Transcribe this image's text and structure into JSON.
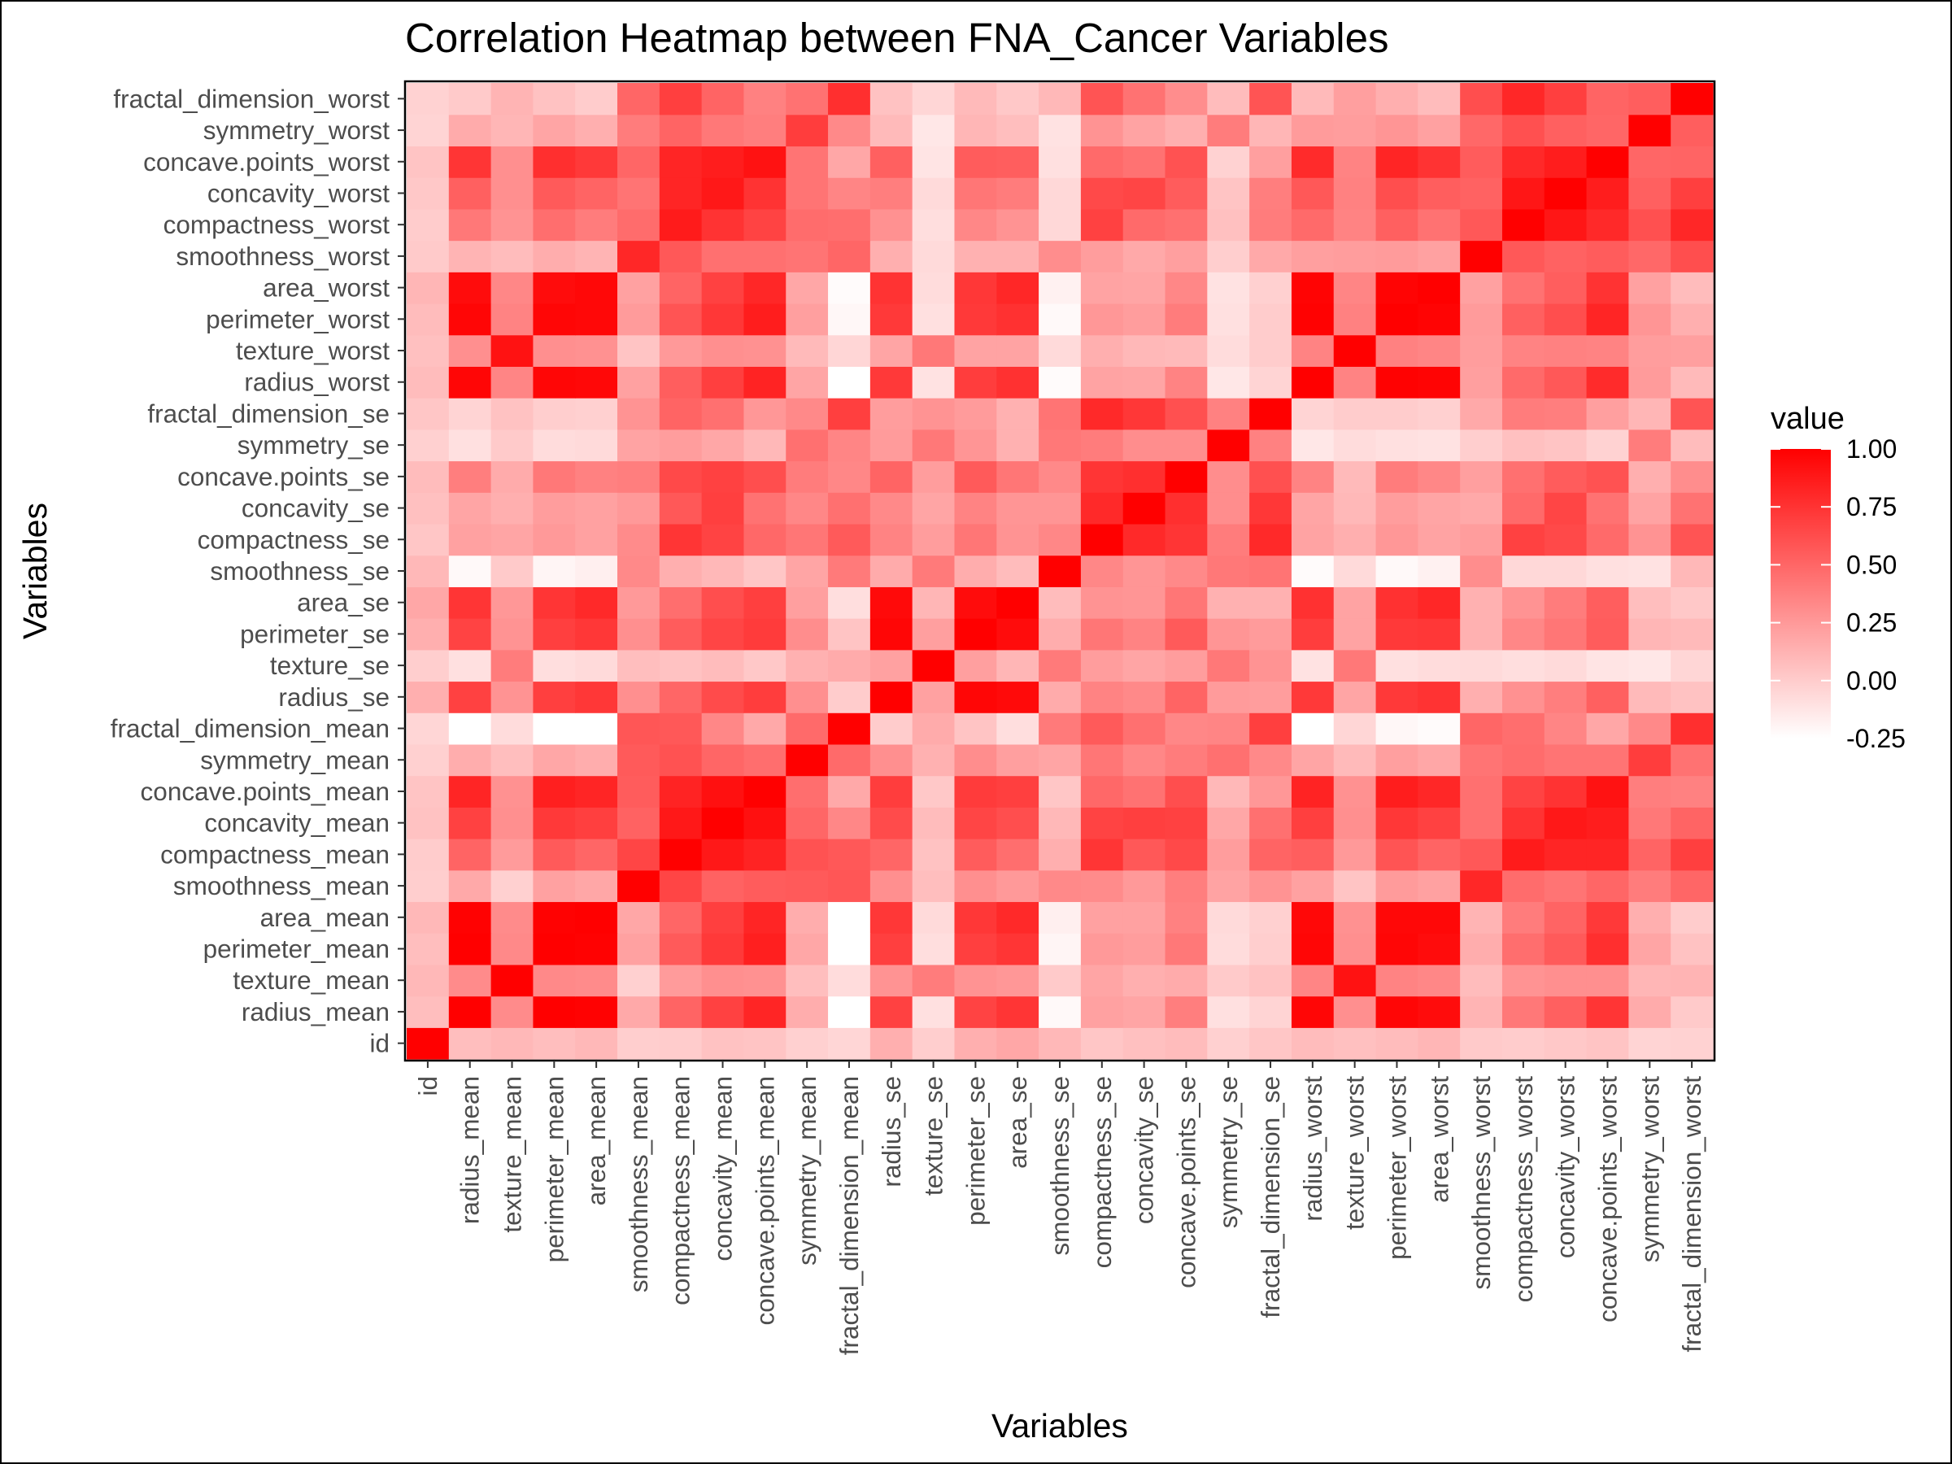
{
  "chart_data": {
    "type": "heatmap",
    "title": "Correlation Heatmap between FNA_Cancer Variables",
    "xlabel": "Variables",
    "ylabel": "Variables",
    "x": [
      "id",
      "radius_mean",
      "texture_mean",
      "perimeter_mean",
      "area_mean",
      "smoothness_mean",
      "compactness_mean",
      "concavity_mean",
      "concave.points_mean",
      "symmetry_mean",
      "fractal_dimension_mean",
      "radius_se",
      "texture_se",
      "perimeter_se",
      "area_se",
      "smoothness_se",
      "compactness_se",
      "concavity_se",
      "concave.points_se",
      "symmetry_se",
      "fractal_dimension_se",
      "radius_worst",
      "texture_worst",
      "perimeter_worst",
      "area_worst",
      "smoothness_worst",
      "compactness_worst",
      "concavity_worst",
      "concave.points_worst",
      "symmetry_worst",
      "fractal_dimension_worst"
    ],
    "y": [
      "id",
      "radius_mean",
      "texture_mean",
      "perimeter_mean",
      "area_mean",
      "smoothness_mean",
      "compactness_mean",
      "concavity_mean",
      "concave.points_mean",
      "symmetry_mean",
      "fractal_dimension_mean",
      "radius_se",
      "texture_se",
      "perimeter_se",
      "area_se",
      "smoothness_se",
      "compactness_se",
      "concavity_se",
      "concave.points_se",
      "symmetry_se",
      "fractal_dimension_se",
      "radius_worst",
      "texture_worst",
      "perimeter_worst",
      "area_worst",
      "smoothness_worst",
      "compactness_worst",
      "concavity_worst",
      "concave.points_worst",
      "symmetry_worst",
      "fractal_dimension_worst"
    ],
    "values": [
      [
        1.0,
        0.07,
        0.1,
        0.07,
        0.1,
        -0.01,
        0.0,
        0.05,
        0.04,
        -0.02,
        -0.05,
        0.14,
        -0.01,
        0.14,
        0.18,
        0.1,
        0.03,
        0.06,
        0.08,
        -0.02,
        0.03,
        0.08,
        0.06,
        0.08,
        0.11,
        0.01,
        0.0,
        0.02,
        0.04,
        -0.04,
        -0.03
      ],
      [
        0.07,
        1.0,
        0.32,
        1.0,
        0.99,
        0.17,
        0.51,
        0.68,
        0.82,
        0.15,
        -0.31,
        0.68,
        -0.1,
        0.67,
        0.74,
        -0.22,
        0.21,
        0.19,
        0.38,
        -0.1,
        -0.04,
        0.97,
        0.3,
        0.97,
        0.94,
        0.12,
        0.41,
        0.53,
        0.74,
        0.16,
        0.01
      ],
      [
        0.1,
        0.32,
        1.0,
        0.33,
        0.32,
        -0.02,
        0.24,
        0.3,
        0.29,
        0.07,
        -0.08,
        0.28,
        0.39,
        0.28,
        0.26,
        0.01,
        0.19,
        0.14,
        0.16,
        0.01,
        0.05,
        0.35,
        0.91,
        0.36,
        0.34,
        0.08,
        0.28,
        0.3,
        0.3,
        0.11,
        0.12
      ],
      [
        0.07,
        1.0,
        0.33,
        1.0,
        0.99,
        0.21,
        0.56,
        0.72,
        0.85,
        0.18,
        -0.26,
        0.69,
        -0.09,
        0.69,
        0.74,
        -0.2,
        0.25,
        0.23,
        0.41,
        -0.08,
        -0.01,
        0.97,
        0.3,
        0.97,
        0.94,
        0.15,
        0.46,
        0.56,
        0.77,
        0.19,
        0.05
      ],
      [
        0.1,
        0.99,
        0.32,
        0.99,
        1.0,
        0.18,
        0.5,
        0.69,
        0.82,
        0.15,
        -0.28,
        0.73,
        -0.07,
        0.73,
        0.8,
        -0.17,
        0.21,
        0.21,
        0.37,
        -0.07,
        -0.02,
        0.96,
        0.29,
        0.96,
        0.96,
        0.12,
        0.39,
        0.51,
        0.72,
        0.14,
        0.0
      ],
      [
        -0.01,
        0.17,
        -0.02,
        0.21,
        0.18,
        1.0,
        0.66,
        0.52,
        0.55,
        0.56,
        0.58,
        0.3,
        0.07,
        0.3,
        0.25,
        0.33,
        0.32,
        0.25,
        0.38,
        0.2,
        0.28,
        0.21,
        0.04,
        0.24,
        0.21,
        0.81,
        0.47,
        0.43,
        0.5,
        0.39,
        0.5
      ],
      [
        0.0,
        0.51,
        0.24,
        0.56,
        0.5,
        0.66,
        1.0,
        0.88,
        0.83,
        0.6,
        0.57,
        0.5,
        0.05,
        0.55,
        0.46,
        0.14,
        0.74,
        0.57,
        0.64,
        0.23,
        0.51,
        0.54,
        0.25,
        0.59,
        0.51,
        0.57,
        0.87,
        0.82,
        0.82,
        0.51,
        0.69
      ],
      [
        0.05,
        0.68,
        0.3,
        0.72,
        0.69,
        0.52,
        0.88,
        1.0,
        0.92,
        0.5,
        0.34,
        0.63,
        0.08,
        0.66,
        0.62,
        0.1,
        0.67,
        0.69,
        0.68,
        0.18,
        0.45,
        0.69,
        0.3,
        0.73,
        0.68,
        0.45,
        0.75,
        0.88,
        0.86,
        0.41,
        0.51
      ],
      [
        0.04,
        0.82,
        0.29,
        0.85,
        0.82,
        0.55,
        0.83,
        0.92,
        1.0,
        0.46,
        0.17,
        0.7,
        0.02,
        0.71,
        0.69,
        0.03,
        0.49,
        0.44,
        0.62,
        0.1,
        0.26,
        0.83,
        0.29,
        0.86,
        0.81,
        0.45,
        0.67,
        0.75,
        0.91,
        0.38,
        0.37
      ],
      [
        -0.02,
        0.15,
        0.07,
        0.18,
        0.15,
        0.56,
        0.6,
        0.5,
        0.46,
        1.0,
        0.48,
        0.3,
        0.13,
        0.31,
        0.22,
        0.19,
        0.42,
        0.34,
        0.39,
        0.45,
        0.33,
        0.19,
        0.09,
        0.22,
        0.18,
        0.43,
        0.47,
        0.43,
        0.43,
        0.7,
        0.44
      ],
      [
        -0.05,
        -0.31,
        -0.08,
        -0.26,
        -0.28,
        0.58,
        0.57,
        0.34,
        0.17,
        0.48,
        1.0,
        0.0,
        0.16,
        0.04,
        -0.09,
        0.4,
        0.56,
        0.45,
        0.34,
        0.35,
        0.69,
        -0.25,
        -0.05,
        -0.21,
        -0.23,
        0.5,
        0.46,
        0.35,
        0.18,
        0.33,
        0.77
      ],
      [
        0.14,
        0.68,
        0.28,
        0.69,
        0.73,
        0.3,
        0.5,
        0.63,
        0.7,
        0.3,
        0.0,
        1.0,
        0.21,
        0.97,
        0.95,
        0.16,
        0.36,
        0.33,
        0.51,
        0.24,
        0.23,
        0.72,
        0.19,
        0.72,
        0.75,
        0.14,
        0.29,
        0.38,
        0.53,
        0.09,
        0.05
      ],
      [
        -0.01,
        -0.1,
        0.39,
        -0.09,
        -0.07,
        0.07,
        0.05,
        0.08,
        0.02,
        0.13,
        0.16,
        0.21,
        1.0,
        0.22,
        0.11,
        0.4,
        0.23,
        0.19,
        0.23,
        0.41,
        0.28,
        -0.11,
        0.41,
        -0.1,
        -0.08,
        -0.07,
        -0.09,
        -0.07,
        -0.12,
        -0.13,
        -0.05
      ],
      [
        0.14,
        0.67,
        0.28,
        0.69,
        0.73,
        0.3,
        0.55,
        0.66,
        0.71,
        0.31,
        0.04,
        0.97,
        0.22,
        1.0,
        0.94,
        0.15,
        0.42,
        0.36,
        0.56,
        0.27,
        0.24,
        0.7,
        0.2,
        0.72,
        0.73,
        0.13,
        0.34,
        0.42,
        0.55,
        0.11,
        0.09
      ],
      [
        0.18,
        0.74,
        0.26,
        0.74,
        0.8,
        0.25,
        0.46,
        0.62,
        0.69,
        0.22,
        -0.09,
        0.95,
        0.11,
        0.94,
        1.0,
        0.08,
        0.28,
        0.27,
        0.42,
        0.13,
        0.13,
        0.76,
        0.2,
        0.76,
        0.81,
        0.13,
        0.28,
        0.39,
        0.54,
        0.07,
        0.02
      ],
      [
        0.1,
        -0.22,
        0.01,
        -0.2,
        -0.17,
        0.33,
        0.14,
        0.1,
        0.03,
        0.19,
        0.4,
        0.16,
        0.4,
        0.15,
        0.08,
        1.0,
        0.34,
        0.27,
        0.33,
        0.41,
        0.43,
        -0.23,
        -0.07,
        -0.22,
        -0.18,
        0.31,
        -0.06,
        -0.06,
        -0.1,
        -0.11,
        0.1
      ],
      [
        0.03,
        0.21,
        0.19,
        0.25,
        0.21,
        0.32,
        0.74,
        0.67,
        0.49,
        0.42,
        0.56,
        0.36,
        0.23,
        0.42,
        0.28,
        0.34,
        1.0,
        0.8,
        0.74,
        0.39,
        0.8,
        0.2,
        0.14,
        0.26,
        0.2,
        0.23,
        0.68,
        0.64,
        0.48,
        0.28,
        0.59
      ],
      [
        0.06,
        0.19,
        0.14,
        0.23,
        0.21,
        0.25,
        0.57,
        0.69,
        0.44,
        0.34,
        0.45,
        0.33,
        0.19,
        0.36,
        0.27,
        0.27,
        0.8,
        1.0,
        0.77,
        0.31,
        0.73,
        0.19,
        0.1,
        0.23,
        0.19,
        0.17,
        0.48,
        0.66,
        0.44,
        0.2,
        0.44
      ],
      [
        0.08,
        0.38,
        0.16,
        0.41,
        0.37,
        0.38,
        0.64,
        0.68,
        0.62,
        0.39,
        0.34,
        0.51,
        0.23,
        0.56,
        0.42,
        0.33,
        0.74,
        0.77,
        1.0,
        0.31,
        0.61,
        0.36,
        0.09,
        0.39,
        0.34,
        0.22,
        0.45,
        0.55,
        0.6,
        0.14,
        0.31
      ],
      [
        -0.02,
        -0.1,
        0.01,
        -0.08,
        -0.07,
        0.2,
        0.23,
        0.18,
        0.1,
        0.45,
        0.35,
        0.24,
        0.41,
        0.27,
        0.13,
        0.41,
        0.39,
        0.31,
        0.31,
        1.0,
        0.37,
        -0.13,
        -0.08,
        -0.1,
        -0.11,
        -0.01,
        0.06,
        0.04,
        -0.03,
        0.39,
        0.08
      ],
      [
        0.03,
        -0.04,
        0.05,
        -0.01,
        -0.02,
        0.28,
        0.51,
        0.45,
        0.26,
        0.33,
        0.69,
        0.23,
        0.28,
        0.24,
        0.13,
        0.43,
        0.8,
        0.73,
        0.61,
        0.37,
        1.0,
        -0.04,
        0.0,
        -0.0,
        -0.02,
        0.17,
        0.39,
        0.38,
        0.22,
        0.11,
        0.59
      ],
      [
        0.08,
        0.97,
        0.35,
        0.97,
        0.96,
        0.21,
        0.54,
        0.69,
        0.83,
        0.19,
        -0.25,
        0.72,
        -0.11,
        0.7,
        0.76,
        -0.23,
        0.2,
        0.19,
        0.36,
        -0.13,
        -0.04,
        1.0,
        0.36,
        0.99,
        0.98,
        0.22,
        0.48,
        0.57,
        0.79,
        0.24,
        0.09
      ],
      [
        0.06,
        0.3,
        0.91,
        0.3,
        0.29,
        0.04,
        0.25,
        0.3,
        0.29,
        0.09,
        -0.05,
        0.19,
        0.41,
        0.2,
        0.2,
        -0.07,
        0.14,
        0.1,
        0.09,
        -0.08,
        0.0,
        0.36,
        1.0,
        0.37,
        0.35,
        0.23,
        0.36,
        0.37,
        0.36,
        0.23,
        0.22
      ],
      [
        0.08,
        0.97,
        0.36,
        0.97,
        0.96,
        0.24,
        0.59,
        0.73,
        0.86,
        0.22,
        -0.21,
        0.72,
        -0.1,
        0.72,
        0.76,
        -0.22,
        0.26,
        0.23,
        0.39,
        -0.1,
        -0.0,
        0.99,
        0.37,
        1.0,
        0.98,
        0.24,
        0.53,
        0.62,
        0.82,
        0.27,
        0.14
      ],
      [
        0.11,
        0.94,
        0.34,
        0.94,
        0.96,
        0.21,
        0.51,
        0.68,
        0.81,
        0.18,
        -0.23,
        0.75,
        -0.08,
        0.73,
        0.81,
        -0.18,
        0.2,
        0.19,
        0.34,
        -0.11,
        -0.02,
        0.98,
        0.35,
        0.98,
        1.0,
        0.21,
        0.44,
        0.54,
        0.75,
        0.21,
        0.08
      ],
      [
        0.01,
        0.12,
        0.08,
        0.15,
        0.12,
        0.81,
        0.57,
        0.45,
        0.45,
        0.43,
        0.5,
        0.14,
        -0.07,
        0.13,
        0.13,
        0.31,
        0.23,
        0.17,
        0.22,
        -0.01,
        0.17,
        0.22,
        0.23,
        0.24,
        0.21,
        1.0,
        0.57,
        0.52,
        0.55,
        0.49,
        0.62
      ],
      [
        0.0,
        0.41,
        0.28,
        0.46,
        0.39,
        0.47,
        0.87,
        0.75,
        0.67,
        0.47,
        0.46,
        0.29,
        -0.09,
        0.34,
        0.28,
        -0.06,
        0.68,
        0.48,
        0.45,
        0.06,
        0.39,
        0.48,
        0.36,
        0.53,
        0.44,
        0.57,
        1.0,
        0.89,
        0.8,
        0.61,
        0.81
      ],
      [
        0.02,
        0.53,
        0.3,
        0.56,
        0.51,
        0.43,
        0.82,
        0.88,
        0.75,
        0.43,
        0.35,
        0.38,
        -0.07,
        0.42,
        0.39,
        -0.06,
        0.64,
        0.66,
        0.55,
        0.04,
        0.38,
        0.57,
        0.37,
        0.62,
        0.54,
        0.52,
        0.89,
        1.0,
        0.86,
        0.53,
        0.69
      ],
      [
        0.04,
        0.74,
        0.3,
        0.77,
        0.72,
        0.5,
        0.82,
        0.86,
        0.91,
        0.43,
        0.18,
        0.53,
        -0.12,
        0.55,
        0.54,
        -0.1,
        0.48,
        0.44,
        0.6,
        -0.03,
        0.22,
        0.79,
        0.36,
        0.82,
        0.75,
        0.55,
        0.8,
        0.86,
        1.0,
        0.5,
        0.51
      ],
      [
        -0.04,
        0.16,
        0.11,
        0.19,
        0.14,
        0.39,
        0.51,
        0.41,
        0.38,
        0.7,
        0.33,
        0.09,
        -0.13,
        0.11,
        0.07,
        -0.11,
        0.28,
        0.2,
        0.14,
        0.39,
        0.11,
        0.24,
        0.23,
        0.27,
        0.21,
        0.49,
        0.61,
        0.53,
        0.5,
        1.0,
        0.54
      ],
      [
        -0.03,
        0.01,
        0.12,
        0.05,
        0.0,
        0.5,
        0.69,
        0.51,
        0.37,
        0.44,
        0.77,
        0.05,
        -0.05,
        0.09,
        0.02,
        0.1,
        0.59,
        0.44,
        0.31,
        0.08,
        0.59,
        0.09,
        0.22,
        0.14,
        0.08,
        0.62,
        0.81,
        0.69,
        0.51,
        0.54,
        1.0
      ]
    ],
    "colorscale": {
      "low": "#ffffff",
      "high": "#ff0000",
      "min": -0.25,
      "max": 1.0
    },
    "legend": {
      "title": "value",
      "placement": "right",
      "ticks": [
        1.0,
        0.75,
        0.5,
        0.25,
        0.0,
        -0.25
      ],
      "tick_labels": [
        "1.00",
        "0.75",
        "0.50",
        "0.25",
        "0.00",
        "-0.25"
      ]
    },
    "grid": false
  }
}
